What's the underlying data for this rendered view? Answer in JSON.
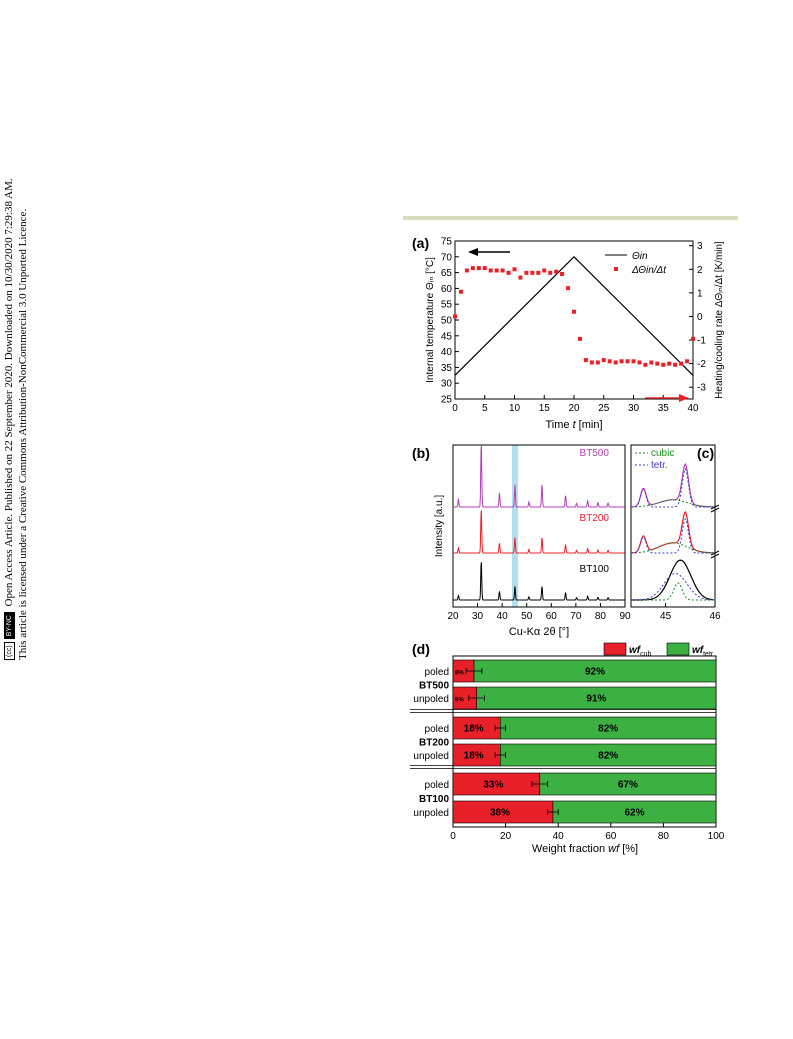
{
  "sidebar": {
    "line1": "Open Access Article. Published on 22 September 2020. Downloaded on 10/30/2020 7:29:38 AM.",
    "line2": "This article is licensed under a Creative Commons Attribution-NonCommercial 3.0 Unported Licence.",
    "cc_logo": "(cc)",
    "cc_tag": "BY-NC"
  },
  "chart_data": [
    {
      "panel": "(a)",
      "type": "line",
      "xlabel_pre": "Time ",
      "xlabel_var": "t",
      "xlabel_post": " [min]",
      "ylabel_left": "Internal temperature Θᵢₙ [°C]",
      "ylabel_right": "Heating/cooling rate ΔΘᵢₙ/Δt [K/min]",
      "xlim": [
        0,
        40
      ],
      "ylim": [
        25,
        75
      ],
      "y2lim": [
        -3.5,
        3.2
      ],
      "xticks": [
        0,
        5,
        10,
        15,
        20,
        25,
        30,
        35,
        40
      ],
      "yticks": [
        25,
        30,
        35,
        40,
        45,
        50,
        55,
        60,
        65,
        70,
        75
      ],
      "y2ticks": [
        -3,
        -2,
        -1,
        0,
        1,
        2,
        3
      ],
      "legend": [
        "Θin",
        "ΔΘin/Δt"
      ],
      "series": [
        {
          "name": "Θin",
          "axis": "left",
          "color": "#000000",
          "x": [
            0,
            20,
            40
          ],
          "y": [
            32.5,
            70,
            32.5
          ]
        },
        {
          "name": "ΔΘin/Δt",
          "axis": "right",
          "style": "square-marker",
          "color": "#e8202a",
          "x": [
            0,
            1,
            2,
            3,
            4,
            5,
            6,
            7,
            8,
            9,
            10,
            11,
            12,
            13,
            14,
            15,
            16,
            17,
            18,
            19,
            20,
            21,
            22,
            23,
            24,
            25,
            26,
            27,
            28,
            29,
            30,
            31,
            32,
            33,
            34,
            35,
            36,
            37,
            38,
            39,
            40
          ],
          "y": [
            0.0,
            1.05,
            1.95,
            2.05,
            2.05,
            2.05,
            1.95,
            1.95,
            1.95,
            1.85,
            2.0,
            1.65,
            1.85,
            1.85,
            1.85,
            1.95,
            1.85,
            1.9,
            1.8,
            1.2,
            0.2,
            -0.95,
            -1.85,
            -1.95,
            -1.95,
            -1.85,
            -1.9,
            -1.95,
            -1.9,
            -1.9,
            -1.9,
            -1.95,
            -2.05,
            -1.95,
            -2.0,
            -2.05,
            -2.0,
            -2.05,
            -2.0,
            -1.9,
            -0.95
          ]
        }
      ],
      "arrow_colors": {
        "left": "#000000",
        "right": "#e8202a"
      }
    },
    {
      "panel": "(b)",
      "type": "line",
      "xlabel": "Cu-Kα 2θ [°]",
      "ylabel": "Intensity [a.u.]",
      "xlim": [
        20,
        90
      ],
      "xticks": [
        20,
        30,
        40,
        50,
        60,
        70,
        80,
        90
      ],
      "highlight_range": [
        44,
        46.5
      ],
      "peaks": {
        "positions": [
          22.2,
          31.5,
          38.9,
          45.2,
          50.9,
          56.2,
          65.8,
          70.3,
          74.8,
          79.0,
          83.1
        ],
        "heights": [
          0.12,
          1.0,
          0.22,
          0.35,
          0.08,
          0.35,
          0.18,
          0.06,
          0.1,
          0.07,
          0.06
        ]
      },
      "series": [
        {
          "name": "BT500",
          "color": "#b23fb5"
        },
        {
          "name": "BT200",
          "color": "#e8202a"
        },
        {
          "name": "BT100",
          "color": "#000000"
        }
      ]
    },
    {
      "panel": "(c)",
      "type": "line",
      "xlim": [
        44.3,
        46
      ],
      "xticks": [
        45,
        46
      ],
      "legend": [
        "cubic",
        "tetr."
      ],
      "legend_colors": {
        "cubic": "#1e8a1e",
        "tetr.": "#3b3bc4"
      }
    },
    {
      "panel": "(d)",
      "type": "bar",
      "orientation": "horizontal",
      "stacked": true,
      "xlabel_pre": "Weight fraction ",
      "xlabel_var": "wf",
      "xlabel_post": " [%]",
      "xlim": [
        0,
        100
      ],
      "xticks": [
        0,
        20,
        40,
        60,
        80,
        100
      ],
      "legend": [
        {
          "name": "wf",
          "sub": "cub",
          "color": "#e8202a"
        },
        {
          "name": "wf",
          "sub": "tetr",
          "color": "#3cb043"
        }
      ],
      "groups": [
        {
          "name": "BT500",
          "rows": [
            {
              "label": "poled",
              "cub": 8,
              "tetr": 92,
              "cub_label": "8%",
              "tetr_label": "92%",
              "err": 3
            },
            {
              "label": "unpoled",
              "cub": 9,
              "tetr": 91,
              "cub_label": "9%",
              "tetr_label": "91%",
              "err": 3
            }
          ]
        },
        {
          "name": "BT200",
          "rows": [
            {
              "label": "poled",
              "cub": 18,
              "tetr": 82,
              "cub_label": "18%",
              "tetr_label": "82%",
              "err": 2
            },
            {
              "label": "unpoled",
              "cub": 18,
              "tetr": 82,
              "cub_label": "18%",
              "tetr_label": "82%",
              "err": 2
            }
          ]
        },
        {
          "name": "BT100",
          "rows": [
            {
              "label": "poled",
              "cub": 33,
              "tetr": 67,
              "cub_label": "33%",
              "tetr_label": "67%",
              "err": 3
            },
            {
              "label": "unpoled",
              "cub": 38,
              "tetr": 62,
              "cub_label": "38%",
              "tetr_label": "62%",
              "err": 2
            }
          ]
        }
      ]
    }
  ]
}
